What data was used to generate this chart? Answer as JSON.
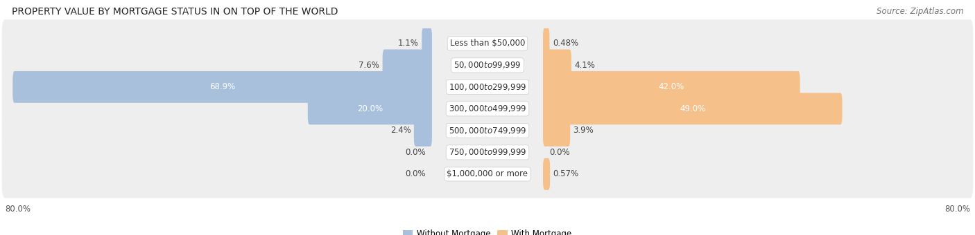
{
  "title": "PROPERTY VALUE BY MORTGAGE STATUS IN ON TOP OF THE WORLD",
  "source": "Source: ZipAtlas.com",
  "categories": [
    "Less than $50,000",
    "$50,000 to $99,999",
    "$100,000 to $299,999",
    "$300,000 to $499,999",
    "$500,000 to $749,999",
    "$750,000 to $999,999",
    "$1,000,000 or more"
  ],
  "without_mortgage": [
    1.1,
    7.6,
    68.9,
    20.0,
    2.4,
    0.0,
    0.0
  ],
  "with_mortgage": [
    0.48,
    4.1,
    42.0,
    49.0,
    3.9,
    0.0,
    0.57
  ],
  "without_mortgage_label": [
    "1.1%",
    "7.6%",
    "68.9%",
    "20.0%",
    "2.4%",
    "0.0%",
    "0.0%"
  ],
  "with_mortgage_label": [
    "0.48%",
    "4.1%",
    "42.0%",
    "49.0%",
    "3.9%",
    "0.0%",
    "0.57%"
  ],
  "without_mortgage_color": "#a8c0dc",
  "with_mortgage_color": "#f5c08a",
  "row_bg_color": "#eeeeee",
  "max_value": 80.0,
  "x_left_label": "80.0%",
  "x_right_label": "80.0%",
  "title_fontsize": 10,
  "source_fontsize": 8.5,
  "label_fontsize": 8.5,
  "category_fontsize": 8.5,
  "value_fontsize": 8.5,
  "legend_fontsize": 8.5
}
